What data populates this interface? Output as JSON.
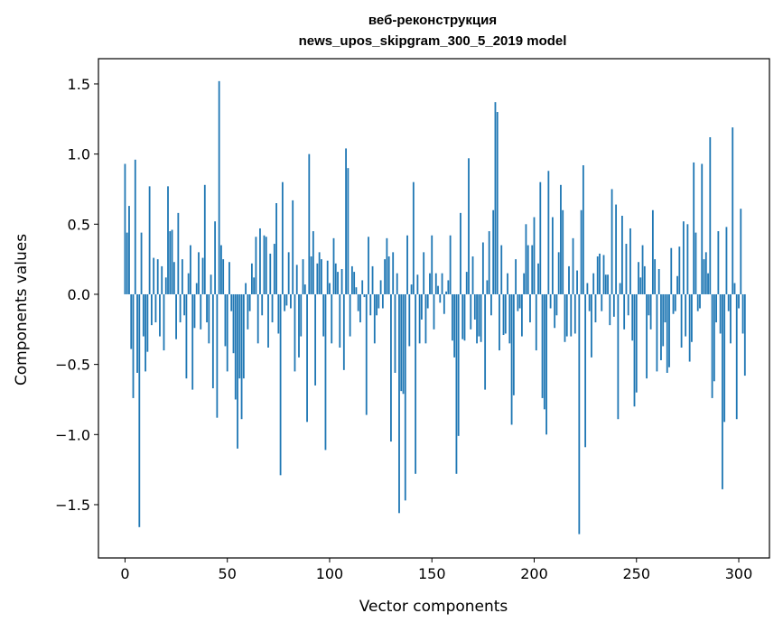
{
  "chart_data": {
    "type": "bar",
    "title_line1": "веб-реконструкция",
    "title_line2": "news_upos_skipgram_300_5_2019 model",
    "xlabel": "Vector components",
    "ylabel": "Components values",
    "xlim": [
      -13,
      315
    ],
    "ylim": [
      -1.88,
      1.68
    ],
    "xticks": [
      0,
      50,
      100,
      150,
      200,
      250,
      300
    ],
    "xtick_labels": [
      "0",
      "50",
      "100",
      "150",
      "200",
      "250",
      "300"
    ],
    "yticks": [
      1.5,
      1.0,
      0.5,
      0.0,
      -0.5,
      -1.0,
      -1.5
    ],
    "ytick_labels": [
      "1.5",
      "1.0",
      "0.5",
      "0.0",
      "−0.5",
      "−1.0",
      "−1.5"
    ],
    "grid": false,
    "bar_color": "#1f77b4",
    "values": [
      0.93,
      0.44,
      0.63,
      -0.39,
      -0.74,
      0.96,
      -0.56,
      -1.66,
      0.44,
      -0.3,
      -0.55,
      -0.41,
      0.77,
      -0.22,
      0.26,
      -0.2,
      0.25,
      -0.3,
      0.2,
      -0.4,
      0.12,
      0.77,
      0.45,
      0.46,
      0.23,
      -0.32,
      0.58,
      -0.2,
      0.25,
      -0.15,
      -0.6,
      0.15,
      0.35,
      -0.68,
      -0.24,
      0.08,
      0.3,
      -0.25,
      0.26,
      0.78,
      -0.2,
      -0.35,
      0.14,
      -0.67,
      0.52,
      -0.88,
      1.52,
      0.35,
      0.25,
      -0.37,
      -0.55,
      0.23,
      -0.12,
      -0.42,
      -0.75,
      -1.1,
      -0.6,
      -0.89,
      -0.6,
      0.08,
      -0.25,
      -0.12,
      0.22,
      0.12,
      0.41,
      -0.35,
      0.47,
      -0.15,
      0.42,
      0.41,
      -0.38,
      0.29,
      -0.2,
      0.36,
      0.65,
      -0.28,
      -1.29,
      0.8,
      -0.12,
      -0.08,
      0.3,
      -0.1,
      0.67,
      -0.55,
      0.21,
      -0.45,
      -0.3,
      0.25,
      0.07,
      -0.91,
      1.0,
      0.27,
      0.45,
      -0.65,
      0.22,
      0.3,
      0.25,
      -0.3,
      -1.11,
      0.24,
      0.08,
      -0.35,
      0.4,
      0.22,
      0.16,
      -0.38,
      0.18,
      -0.54,
      1.04,
      0.9,
      -0.3,
      0.2,
      0.16,
      0.05,
      -0.12,
      -0.2,
      0.1,
      -0.02,
      -0.86,
      0.41,
      -0.15,
      0.2,
      -0.35,
      -0.15,
      -0.1,
      0.1,
      -0.1,
      0.25,
      0.4,
      0.27,
      -1.05,
      0.3,
      -0.56,
      0.15,
      -1.56,
      -0.69,
      -0.71,
      -1.47,
      0.42,
      -0.37,
      0.07,
      0.8,
      -1.28,
      0.14,
      -0.35,
      -0.18,
      0.3,
      -0.35,
      -0.1,
      0.15,
      0.42,
      -0.25,
      0.15,
      0.06,
      -0.06,
      0.15,
      -0.14,
      0.02,
      0.1,
      0.42,
      -0.33,
      -0.45,
      -1.28,
      -1.01,
      0.58,
      -0.32,
      -0.33,
      0.16,
      0.97,
      -0.25,
      0.27,
      -0.18,
      -0.35,
      -0.3,
      -0.34,
      0.37,
      -0.68,
      0.1,
      0.45,
      -0.15,
      0.6,
      1.37,
      1.3,
      -0.4,
      0.35,
      -0.29,
      -0.28,
      0.15,
      -0.35,
      -0.93,
      -0.72,
      0.25,
      -0.12,
      -0.1,
      -0.3,
      0.15,
      0.5,
      0.35,
      -0.2,
      0.35,
      0.55,
      -0.4,
      0.22,
      0.8,
      -0.74,
      -0.82,
      -1.0,
      0.88,
      -0.1,
      0.55,
      -0.24,
      -0.15,
      0.3,
      0.78,
      0.6,
      -0.34,
      -0.3,
      0.2,
      -0.3,
      0.4,
      -0.28,
      0.17,
      -1.71,
      0.6,
      0.92,
      -1.09,
      0.08,
      -0.12,
      -0.45,
      0.15,
      -0.2,
      0.27,
      0.29,
      -0.12,
      0.28,
      0.14,
      0.14,
      -0.22,
      0.75,
      -0.16,
      0.64,
      -0.89,
      0.08,
      0.56,
      -0.25,
      0.36,
      -0.15,
      0.47,
      -0.33,
      -0.8,
      -0.7,
      0.23,
      0.12,
      0.35,
      0.2,
      -0.6,
      -0.15,
      -0.25,
      0.6,
      0.25,
      -0.55,
      0.18,
      -0.47,
      -0.37,
      -0.2,
      -0.56,
      -0.52,
      0.33,
      -0.14,
      -0.12,
      0.13,
      0.34,
      -0.38,
      0.52,
      -0.3,
      0.5,
      -0.48,
      -0.34,
      0.94,
      0.44,
      -0.12,
      -0.1,
      0.93,
      0.25,
      0.3,
      0.15,
      1.12,
      -0.74,
      -0.62,
      -0.2,
      0.45,
      -0.28,
      -1.39,
      -0.91,
      0.48,
      -0.12,
      -0.35,
      1.19,
      0.08,
      -0.89,
      -0.1,
      0.61,
      -0.28,
      -0.58
    ]
  }
}
